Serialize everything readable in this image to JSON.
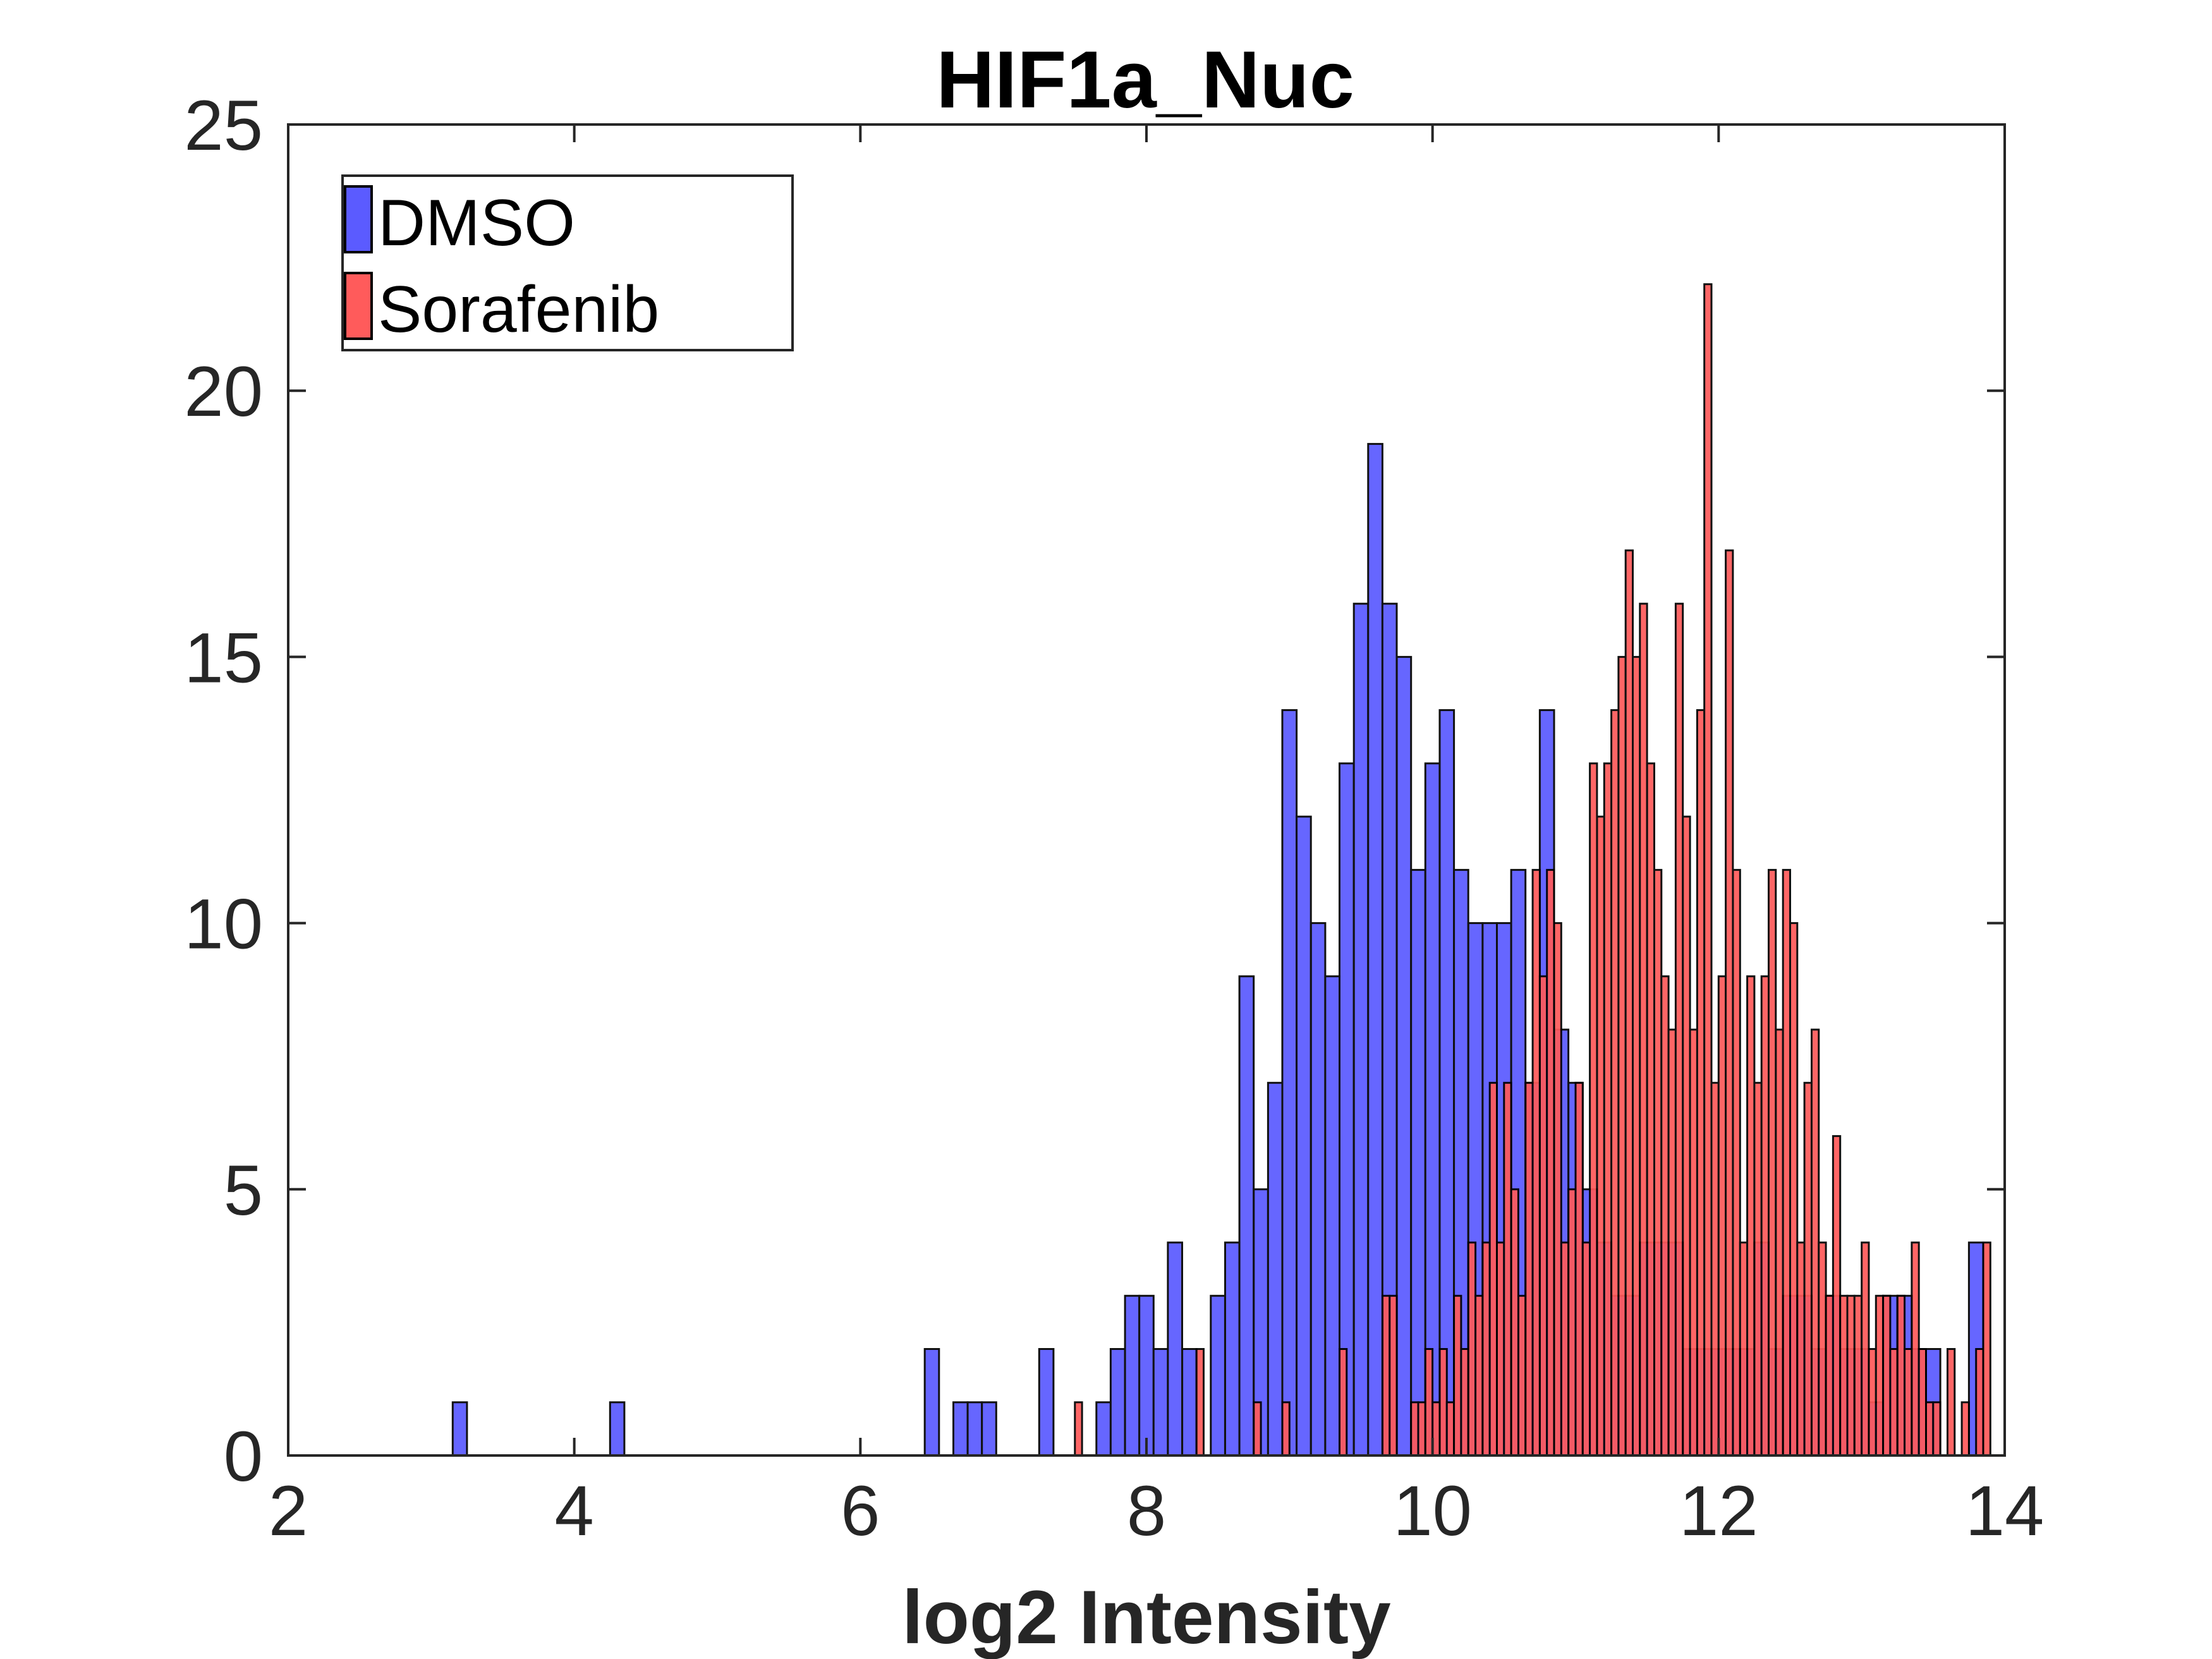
{
  "chart_data": {
    "type": "bar",
    "title": "HIF1a_Nuc",
    "xlabel": "log2 Intensity",
    "ylabel": "",
    "xlim": [
      2,
      14
    ],
    "ylim": [
      0,
      25
    ],
    "xticks": [
      2,
      4,
      6,
      8,
      10,
      12,
      14
    ],
    "yticks": [
      0,
      5,
      10,
      15,
      20,
      25
    ],
    "grid": false,
    "legend_placement": "top-left",
    "series": [
      {
        "name": "DMSO",
        "color": "#5b5bff",
        "bin_width": 0.1,
        "x": [
          3.2,
          4.3,
          6.5,
          6.7,
          6.8,
          6.9,
          7.3,
          7.7,
          7.8,
          7.9,
          8.0,
          8.1,
          8.2,
          8.3,
          8.5,
          8.6,
          8.7,
          8.8,
          8.9,
          9.0,
          9.1,
          9.2,
          9.3,
          9.4,
          9.5,
          9.6,
          9.7,
          9.8,
          9.9,
          10.0,
          10.1,
          10.2,
          10.3,
          10.4,
          10.5,
          10.6,
          10.7,
          10.8,
          10.9,
          11.0,
          11.1,
          11.2,
          11.3,
          11.4,
          11.5,
          11.6,
          11.7,
          11.8,
          11.9,
          12.0,
          12.1,
          12.2,
          12.3,
          12.4,
          12.5,
          12.6,
          12.7,
          12.8,
          12.9,
          13.0,
          13.1,
          13.2,
          13.3,
          13.4,
          13.5,
          13.8
        ],
        "values": [
          1,
          1,
          2,
          1,
          1,
          1,
          2,
          1,
          2,
          3,
          3,
          2,
          4,
          2,
          3,
          4,
          9,
          5,
          7,
          14,
          12,
          10,
          9,
          13,
          16,
          19,
          16,
          15,
          11,
          13,
          14,
          11,
          10,
          10,
          10,
          11,
          7,
          14,
          8,
          7,
          5,
          4,
          3,
          3,
          4,
          4,
          4,
          2,
          2,
          2,
          2,
          2,
          4,
          2,
          3,
          3,
          2,
          3,
          2,
          2,
          1,
          3,
          3,
          2,
          2,
          4
        ]
      },
      {
        "name": "Sorafenib",
        "color": "#ff5b5b",
        "bin_width": 0.05,
        "x": [
          7.525,
          8.375,
          8.775,
          8.975,
          9.375,
          9.675,
          9.725,
          9.875,
          9.925,
          9.975,
          10.025,
          10.075,
          10.125,
          10.175,
          10.225,
          10.275,
          10.325,
          10.375,
          10.425,
          10.475,
          10.525,
          10.575,
          10.625,
          10.675,
          10.725,
          10.775,
          10.825,
          10.875,
          10.925,
          10.975,
          11.025,
          11.075,
          11.125,
          11.175,
          11.225,
          11.275,
          11.325,
          11.375,
          11.425,
          11.475,
          11.525,
          11.575,
          11.625,
          11.675,
          11.725,
          11.775,
          11.825,
          11.875,
          11.925,
          11.975,
          12.025,
          12.075,
          12.125,
          12.175,
          12.225,
          12.275,
          12.325,
          12.375,
          12.425,
          12.475,
          12.525,
          12.575,
          12.625,
          12.675,
          12.725,
          12.775,
          12.825,
          12.875,
          12.925,
          12.975,
          13.025,
          13.075,
          13.125,
          13.175,
          13.225,
          13.275,
          13.325,
          13.375,
          13.425,
          13.475,
          13.525,
          13.625,
          13.725,
          13.825,
          13.875
        ],
        "values": [
          1,
          2,
          1,
          1,
          2,
          3,
          3,
          1,
          1,
          2,
          1,
          2,
          1,
          3,
          2,
          4,
          3,
          4,
          7,
          4,
          7,
          5,
          3,
          7,
          11,
          9,
          11,
          10,
          4,
          5,
          7,
          4,
          13,
          12,
          13,
          14,
          15,
          17,
          15,
          16,
          13,
          11,
          9,
          8,
          16,
          12,
          8,
          14,
          22,
          7,
          9,
          17,
          11,
          4,
          9,
          7,
          9,
          11,
          8,
          11,
          10,
          4,
          7,
          8,
          4,
          3,
          6,
          3,
          3,
          3,
          4,
          2,
          3,
          3,
          2,
          3,
          2,
          4,
          2,
          1,
          1,
          2,
          1,
          2,
          4
        ]
      }
    ]
  }
}
